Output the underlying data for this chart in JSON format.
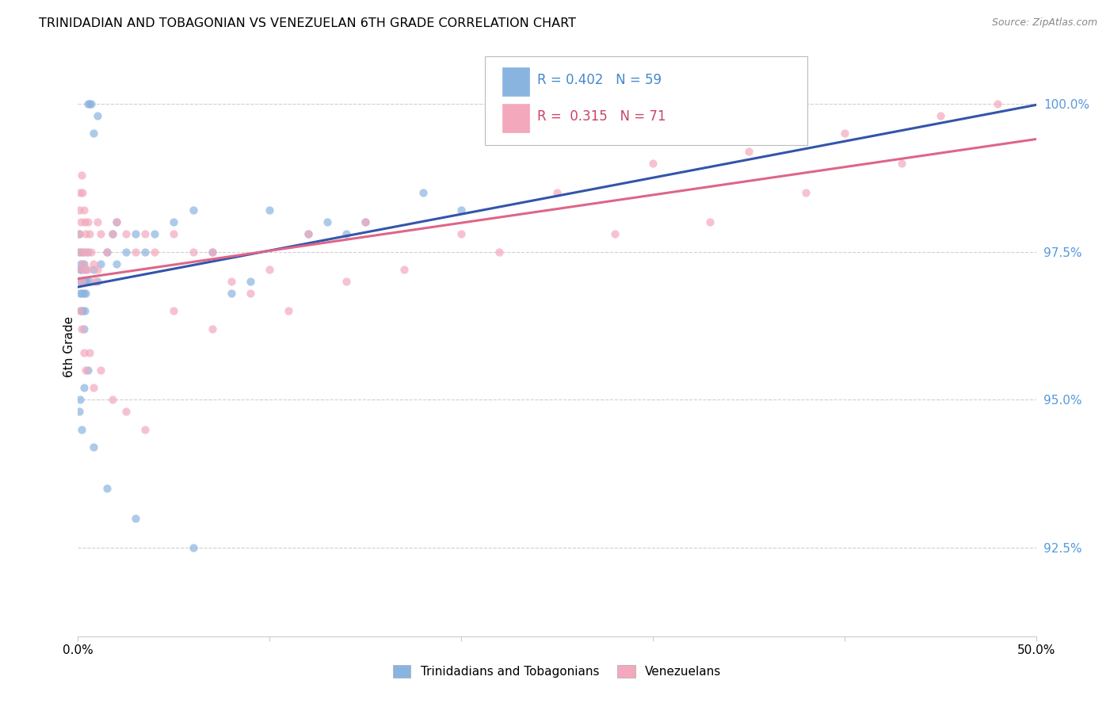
{
  "title": "TRINIDADIAN AND TOBAGONIAN VS VENEZUELAN 6TH GRADE CORRELATION CHART",
  "source": "Source: ZipAtlas.com",
  "ylabel": "6th Grade",
  "ylim": [
    91.0,
    100.8
  ],
  "xlim": [
    0.0,
    50.0
  ],
  "yticks": [
    92.5,
    95.0,
    97.5,
    100.0
  ],
  "ytick_labels": [
    "92.5%",
    "95.0%",
    "97.5%",
    "100.0%"
  ],
  "blue_R": 0.402,
  "blue_N": 59,
  "pink_R": 0.315,
  "pink_N": 71,
  "legend_label_blue": "Trinidadians and Tobagonians",
  "legend_label_pink": "Venezuelans",
  "blue_color": "#8ab4e0",
  "pink_color": "#f4a8bc",
  "blue_line_color": "#3355aa",
  "pink_line_color": "#dd6688",
  "scatter_alpha": 0.7,
  "marker_size": 55,
  "blue_x": [
    0.05,
    0.08,
    0.1,
    0.1,
    0.12,
    0.15,
    0.15,
    0.18,
    0.2,
    0.2,
    0.25,
    0.25,
    0.3,
    0.3,
    0.3,
    0.35,
    0.35,
    0.4,
    0.4,
    0.45,
    0.5,
    0.5,
    0.6,
    0.6,
    0.7,
    0.8,
    0.8,
    1.0,
    1.0,
    1.2,
    1.5,
    1.8,
    2.0,
    2.0,
    2.5,
    3.0,
    3.5,
    4.0,
    5.0,
    6.0,
    7.0,
    8.0,
    9.0,
    10.0,
    12.0,
    13.0,
    14.0,
    15.0,
    18.0,
    20.0,
    0.08,
    0.12,
    0.2,
    0.3,
    0.5,
    0.8,
    1.5,
    3.0,
    6.0
  ],
  "blue_y": [
    97.8,
    97.5,
    97.2,
    96.8,
    97.0,
    97.3,
    96.5,
    97.0,
    97.2,
    96.8,
    97.5,
    96.5,
    97.3,
    96.8,
    96.2,
    97.0,
    96.5,
    97.2,
    96.8,
    97.0,
    100.0,
    97.5,
    100.0,
    97.0,
    100.0,
    99.5,
    97.2,
    99.8,
    97.0,
    97.3,
    97.5,
    97.8,
    98.0,
    97.3,
    97.5,
    97.8,
    97.5,
    97.8,
    98.0,
    98.2,
    97.5,
    96.8,
    97.0,
    98.2,
    97.8,
    98.0,
    97.8,
    98.0,
    98.5,
    98.2,
    94.8,
    95.0,
    94.5,
    95.2,
    95.5,
    94.2,
    93.5,
    93.0,
    92.5
  ],
  "pink_x": [
    0.05,
    0.08,
    0.1,
    0.12,
    0.15,
    0.15,
    0.2,
    0.2,
    0.25,
    0.25,
    0.3,
    0.3,
    0.35,
    0.35,
    0.4,
    0.45,
    0.5,
    0.5,
    0.6,
    0.7,
    0.8,
    0.9,
    1.0,
    1.0,
    1.2,
    1.5,
    1.8,
    2.0,
    2.5,
    3.0,
    3.5,
    4.0,
    5.0,
    6.0,
    7.0,
    8.0,
    10.0,
    12.0,
    15.0,
    20.0,
    25.0,
    30.0,
    35.0,
    40.0,
    45.0,
    48.0,
    0.1,
    0.2,
    0.3,
    0.4,
    0.6,
    0.8,
    1.2,
    1.8,
    2.5,
    3.5,
    5.0,
    7.0,
    9.0,
    11.0,
    14.0,
    17.0,
    22.0,
    28.0,
    33.0,
    38.0,
    43.0
  ],
  "pink_y": [
    98.2,
    97.8,
    98.5,
    97.5,
    98.0,
    97.2,
    98.8,
    97.0,
    98.5,
    97.3,
    98.2,
    97.5,
    98.0,
    97.2,
    97.8,
    97.5,
    98.0,
    97.2,
    97.8,
    97.5,
    97.3,
    97.0,
    98.0,
    97.2,
    97.8,
    97.5,
    97.8,
    98.0,
    97.8,
    97.5,
    97.8,
    97.5,
    97.8,
    97.5,
    97.5,
    97.0,
    97.2,
    97.8,
    98.0,
    97.8,
    98.5,
    99.0,
    99.2,
    99.5,
    99.8,
    100.0,
    96.5,
    96.2,
    95.8,
    95.5,
    95.8,
    95.2,
    95.5,
    95.0,
    94.8,
    94.5,
    96.5,
    96.2,
    96.8,
    96.5,
    97.0,
    97.2,
    97.5,
    97.8,
    98.0,
    98.5,
    99.0
  ]
}
